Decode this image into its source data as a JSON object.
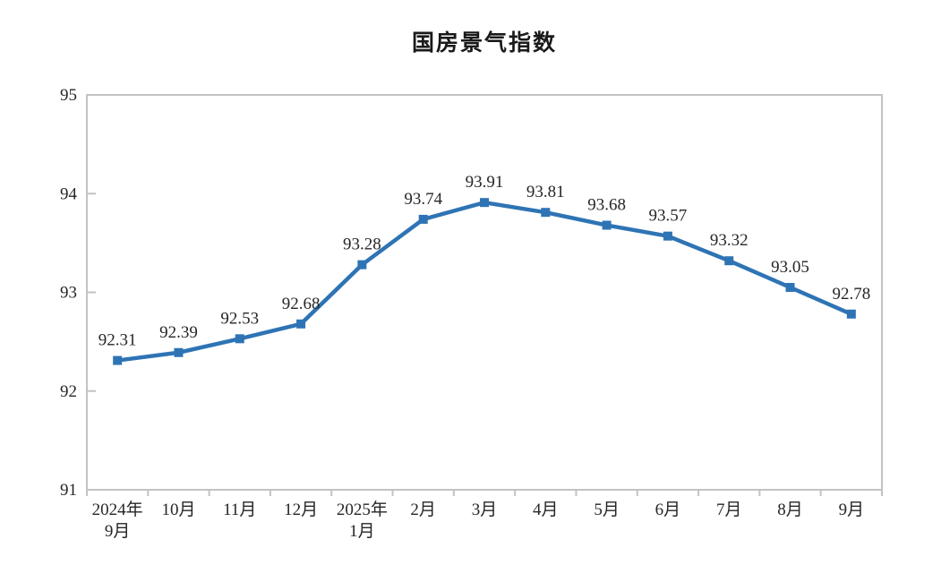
{
  "chart_data": {
    "type": "line",
    "title": "国房景气指数",
    "categories": [
      "2024年\n9月",
      "10月",
      "11月",
      "12月",
      "2025年\n1月",
      "2月",
      "3月",
      "4月",
      "5月",
      "6月",
      "7月",
      "8月",
      "9月"
    ],
    "values": [
      92.31,
      92.39,
      92.53,
      92.68,
      93.28,
      93.74,
      93.91,
      93.81,
      93.68,
      93.57,
      93.32,
      93.05,
      92.78
    ],
    "data_labels": [
      "92.31",
      "92.39",
      "92.53",
      "92.68",
      "93.28",
      "93.74",
      "93.91",
      "93.81",
      "93.68",
      "93.57",
      "93.32",
      "93.05",
      "92.78"
    ],
    "xlabel": "",
    "ylabel": "",
    "ylim": [
      91,
      95
    ],
    "yticks": [
      91,
      92,
      93,
      94,
      95
    ],
    "grid": false,
    "legend_position": "none",
    "marker": "square",
    "colors": {
      "line": "#2E74B5",
      "marker": "#2E74B5",
      "data_label_text": "#262626",
      "axis_border": "#C3C3C3",
      "tick_label_text": "#262626",
      "background": "#ffffff"
    }
  }
}
